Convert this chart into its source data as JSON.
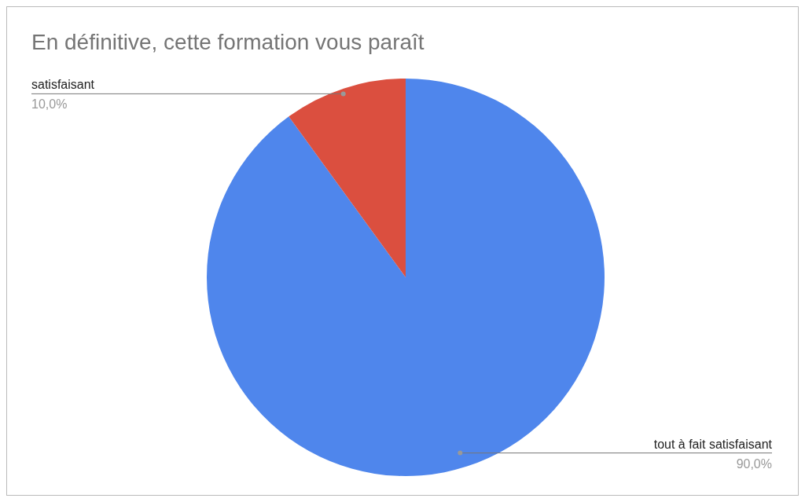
{
  "chart_data": {
    "type": "pie",
    "title": "En définitive, cette formation vous paraît",
    "categories": [
      "tout à fait satisfaisant",
      "satisfaisant"
    ],
    "values": [
      90,
      10
    ],
    "colors": [
      "#4f86ec",
      "#db4f3f"
    ],
    "value_labels": [
      "90,0%",
      "10,0%"
    ]
  }
}
